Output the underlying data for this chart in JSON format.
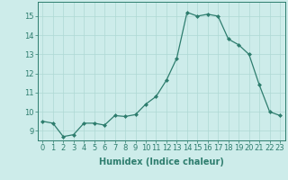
{
  "x": [
    0,
    1,
    2,
    3,
    4,
    5,
    6,
    7,
    8,
    9,
    10,
    11,
    12,
    13,
    14,
    15,
    16,
    17,
    18,
    19,
    20,
    21,
    22,
    23
  ],
  "y": [
    9.5,
    9.4,
    8.7,
    8.8,
    9.4,
    9.4,
    9.3,
    9.8,
    9.75,
    9.85,
    10.4,
    10.8,
    11.65,
    12.8,
    15.2,
    15.0,
    15.1,
    15.0,
    13.8,
    13.5,
    13.0,
    11.4,
    10.0,
    9.8
  ],
  "xlabel": "Humidex (Indice chaleur)",
  "xlim": [
    -0.5,
    23.5
  ],
  "ylim": [
    8.5,
    15.75
  ],
  "yticks": [
    9,
    10,
    11,
    12,
    13,
    14,
    15
  ],
  "xticks": [
    0,
    1,
    2,
    3,
    4,
    5,
    6,
    7,
    8,
    9,
    10,
    11,
    12,
    13,
    14,
    15,
    16,
    17,
    18,
    19,
    20,
    21,
    22,
    23
  ],
  "line_color": "#2e7d6e",
  "marker_color": "#2e7d6e",
  "bg_color": "#cdecea",
  "grid_color": "#aed8d4",
  "label_fontsize": 7,
  "tick_fontsize": 6
}
